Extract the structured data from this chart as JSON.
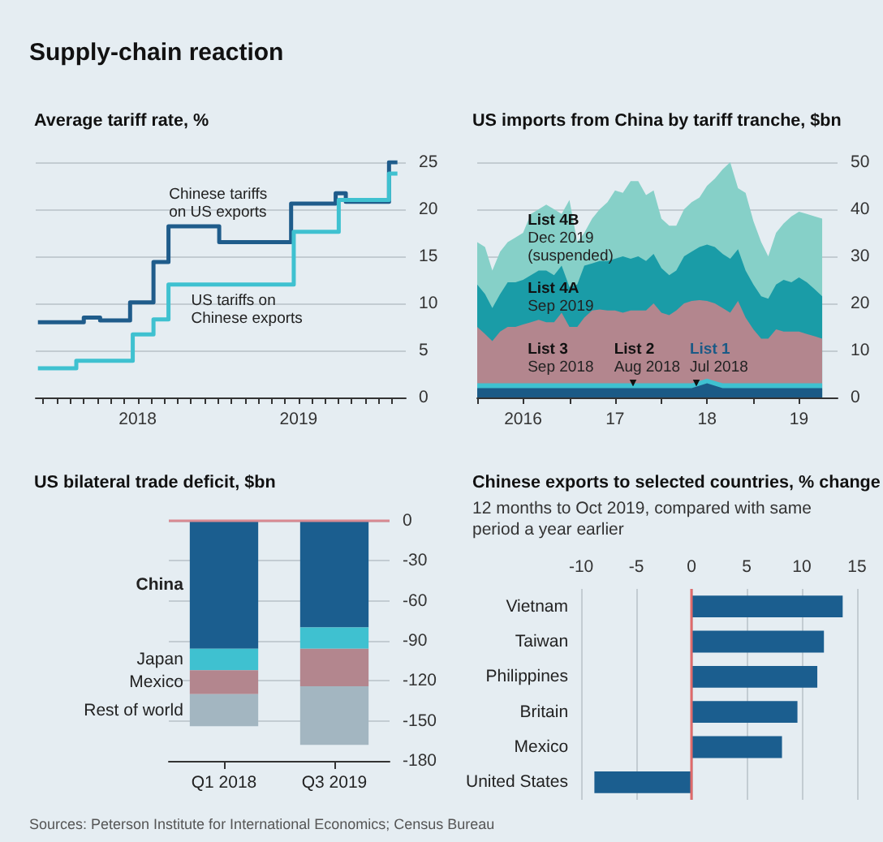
{
  "chart_data": [
    {
      "type": "other",
      "title": "Supply-chain reaction",
      "annotations": [
        "Sources: Peterson Institute for International Economics; Census Bureau"
      ]
    },
    {
      "type": "step",
      "title": "Average tariff rate, %",
      "xlim": [
        "2017-05-15",
        "2019-09-01"
      ],
      "ylim": [
        0,
        25
      ],
      "yticks": [
        0,
        5,
        10,
        15,
        20,
        25
      ],
      "grid": "y",
      "xticks": [
        {
          "value": "2017-06",
          "label": null
        },
        {
          "value": "2017-07",
          "label": null
        },
        {
          "value": "2017-08",
          "label": null
        },
        {
          "value": "2017-09",
          "label": null
        },
        {
          "value": "2017-10",
          "label": null
        },
        {
          "value": "2017-11",
          "label": null
        },
        {
          "value": "2017-12",
          "label": null
        },
        {
          "value": "2018",
          "label": "2018"
        },
        {
          "value": "2018-02",
          "label": null
        },
        {
          "value": "2018-03",
          "label": null
        },
        {
          "value": "2018-04",
          "label": null
        },
        {
          "value": "2018-05",
          "label": null
        },
        {
          "value": "2018-06",
          "label": null
        },
        {
          "value": "2018-07",
          "label": null
        },
        {
          "value": "2018-08",
          "label": null
        },
        {
          "value": "2018-09",
          "label": null
        },
        {
          "value": "2018-10",
          "label": null
        },
        {
          "value": "2018-11",
          "label": null
        },
        {
          "value": "2018-12",
          "label": null
        },
        {
          "value": "2019",
          "label": "2019"
        },
        {
          "value": "2019-02",
          "label": null
        },
        {
          "value": "2019-03",
          "label": null
        },
        {
          "value": "2019-04",
          "label": null
        },
        {
          "value": "2019-05",
          "label": null
        },
        {
          "value": "2019-06",
          "label": null
        },
        {
          "value": "2019-07",
          "label": null
        },
        {
          "value": "2019-08",
          "label": null
        }
      ],
      "series": [
        {
          "name": "Chinese tariffs\non US exports",
          "color": "#1f5c8b",
          "x": [
            "2017-05-20",
            "2017-09-01",
            "2017-10-08",
            "2017-12-15",
            "2018-02-06",
            "2018-03-12",
            "2018-07-05",
            "2018-12-15",
            "2019-03-26",
            "2019-04-18",
            "2019-07-25",
            "2019-08-13"
          ],
          "values": [
            8,
            8.5,
            8.2,
            10.1,
            14.4,
            18.2,
            16.5,
            20.6,
            21.7,
            20.8,
            25,
            25
          ]
        },
        {
          "name": "US tariffs on\nChinese exports",
          "color": "#3fc1d0",
          "x": [
            "2017-05-20",
            "2017-08-15",
            "2017-12-21",
            "2018-02-06",
            "2018-03-12",
            "2018-12-21",
            "2019-04-02",
            "2019-07-25",
            "2019-08-13"
          ],
          "values": [
            3.1,
            3.9,
            6.7,
            8.3,
            12,
            17.6,
            21,
            23.8,
            23.8
          ]
        }
      ]
    },
    {
      "type": "area",
      "stacked": true,
      "title": "US imports from China by tariff tranche, $bn",
      "xlim": [
        "2016-01",
        "2019-12"
      ],
      "ylim": [
        0,
        50
      ],
      "yticks": [
        0,
        10,
        20,
        30,
        40,
        50
      ],
      "grid": "y",
      "xticks": [
        {
          "value": "2016-01",
          "label": null
        },
        {
          "value": "2016-07",
          "label": "2016"
        },
        {
          "value": "2017-01",
          "label": null
        },
        {
          "value": "2017-07",
          "label": "17"
        },
        {
          "value": "2018-01",
          "label": null
        },
        {
          "value": "2018-07",
          "label": "18"
        },
        {
          "value": "2019-01",
          "label": null
        },
        {
          "value": "2019-07",
          "label": "19"
        }
      ],
      "x": [
        "2016-01",
        "2016-02",
        "2016-03",
        "2016-04",
        "2016-05",
        "2016-06",
        "2016-07",
        "2016-08",
        "2016-09",
        "2016-10",
        "2016-11",
        "2016-12",
        "2017-01",
        "2017-02",
        "2017-03",
        "2017-04",
        "2017-05",
        "2017-06",
        "2017-07",
        "2017-08",
        "2017-09",
        "2017-10",
        "2017-11",
        "2017-12",
        "2018-01",
        "2018-02",
        "2018-03",
        "2018-04",
        "2018-05",
        "2018-06",
        "2018-07",
        "2018-08",
        "2018-09",
        "2018-10",
        "2018-11",
        "2018-12",
        "2019-01",
        "2019-02",
        "2019-03",
        "2019-04",
        "2019-05",
        "2019-06",
        "2019-07",
        "2019-08",
        "2019-09",
        "2019-10"
      ],
      "series": [
        {
          "name": "List 1\nJul 2018",
          "color": "#1b5a86",
          "values": [
            2,
            2,
            2,
            2,
            2,
            2,
            2,
            2,
            2,
            2,
            2,
            2,
            2,
            2,
            2,
            2,
            2,
            2,
            2,
            2,
            2,
            2,
            2,
            2,
            2,
            2,
            2,
            2,
            2,
            2.5,
            3,
            2.5,
            2,
            2,
            2,
            2,
            2,
            2,
            2,
            2,
            2,
            2,
            2,
            2,
            2,
            2
          ]
        },
        {
          "name": "List 2\nAug 2018",
          "color": "#3fc1d0",
          "values": [
            1,
            1,
            1,
            1,
            1,
            1,
            1,
            1,
            1,
            1,
            1,
            1,
            1,
            1,
            1,
            1,
            1,
            1,
            1,
            1,
            1,
            1,
            1,
            1,
            1,
            1,
            1,
            1,
            1,
            1,
            1,
            1,
            1,
            1,
            1,
            1,
            1,
            1,
            1,
            1,
            1,
            1,
            1,
            1,
            1,
            1
          ]
        },
        {
          "name": "List 3\nSep 2018",
          "color": "#b3868e",
          "values": [
            12,
            10.5,
            9,
            11,
            12,
            12,
            12.5,
            13,
            13.5,
            13,
            13,
            15,
            12,
            12,
            14,
            15.5,
            15.7,
            15.5,
            15.5,
            15,
            15.5,
            15.5,
            15.5,
            17,
            15,
            14.5,
            15.5,
            17,
            17.5,
            17.2,
            16.5,
            16.5,
            16,
            15,
            17.5,
            14,
            11.5,
            9.5,
            9.5,
            11.5,
            11,
            11,
            11,
            10.5,
            10,
            9.5
          ]
        },
        {
          "name": "List 4A\nSep 2019",
          "color": "#1a9ca7",
          "values": [
            9,
            8.5,
            7,
            8,
            9.5,
            9.5,
            9.5,
            10,
            10.5,
            11,
            10,
            10,
            8.5,
            9,
            11,
            10,
            10.3,
            10.5,
            11,
            12,
            11,
            11.5,
            10.5,
            10.5,
            9.5,
            8.5,
            8.5,
            10,
            10.5,
            11.3,
            12,
            12,
            11.5,
            11.5,
            11,
            10,
            9.5,
            9,
            8.5,
            9.5,
            11,
            10.5,
            11.5,
            11,
            10,
            9
          ]
        },
        {
          "name": "List 4B\nDec 2019\n(suspended)",
          "color": "#86d0c8",
          "values": [
            9,
            10,
            8,
            9,
            8.5,
            9.5,
            10,
            13,
            13,
            14,
            14,
            11,
            18.5,
            9,
            7,
            9.5,
            11,
            12.5,
            14.5,
            13.5,
            16.5,
            16,
            14,
            13.5,
            10.5,
            10.5,
            9.5,
            10,
            10.5,
            10.5,
            12.5,
            14.5,
            18,
            20.5,
            13,
            16.5,
            13.5,
            11.5,
            9,
            11,
            12,
            14,
            14,
            14.5,
            15.5,
            16.5
          ]
        }
      ]
    },
    {
      "type": "bar",
      "stacked": true,
      "title": "US bilateral trade deficit, $bn",
      "categories": [
        "Q1 2018",
        "Q3 2019"
      ],
      "ylim": [
        -180,
        0
      ],
      "yticks": [
        0,
        -30,
        -60,
        -90,
        -120,
        -150,
        -180
      ],
      "grid": "y",
      "ref_lines": [
        {
          "axis": "y",
          "value": 0,
          "color": "#d98a92"
        }
      ],
      "series": [
        {
          "name": "China",
          "color": "#1b5e8f",
          "values": [
            -96,
            -80
          ]
        },
        {
          "name": "Japan",
          "color": "#3fc1d0",
          "values": [
            -16,
            -16
          ]
        },
        {
          "name": "Mexico",
          "color": "#b3868e",
          "values": [
            -18,
            -28
          ]
        },
        {
          "name": "Rest of world",
          "color": "#a3b6c1",
          "values": [
            -24,
            -44
          ]
        }
      ]
    },
    {
      "type": "bar",
      "orientation": "horizontal",
      "title": "Chinese exports to selected countries, % change",
      "subtitle": "12 months to Oct 2019, compared with same period a year earlier",
      "categories": [
        "Vietnam",
        "Taiwan",
        "Philippines",
        "Britain",
        "Mexico",
        "United States"
      ],
      "values": [
        13.7,
        12,
        11.4,
        9.6,
        8.2,
        -8.8
      ],
      "color": "#1b5e8f",
      "xlim": [
        -10,
        15
      ],
      "xticks": [
        -10,
        -5,
        0,
        5,
        10,
        15
      ],
      "grid": "x",
      "ref_lines": [
        {
          "axis": "x",
          "value": 0,
          "color": "#e06a6a"
        }
      ]
    }
  ]
}
